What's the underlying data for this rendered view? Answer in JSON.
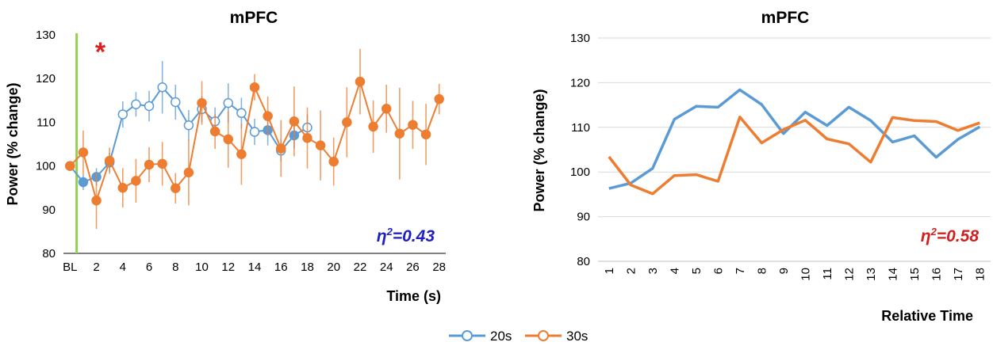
{
  "colors": {
    "s20": "#5B9BD5",
    "s30": "#ED7D31",
    "baseline": "#92D050",
    "eta_left": "#1F1FBF",
    "eta_right": "#D21F1F",
    "asterisk": "#E02020"
  },
  "legend": [
    {
      "label": "20s",
      "color": "#5B9BD5"
    },
    {
      "label": "30s",
      "color": "#ED7D31"
    }
  ],
  "chart_data": [
    {
      "type": "line",
      "title": "mPFC",
      "xlabel": "Time (s)",
      "ylabel": "Power (% change)",
      "ylim": [
        80,
        130
      ],
      "yticks": [
        80,
        90,
        100,
        110,
        120,
        130
      ],
      "xlim": [
        -0.5,
        28.5
      ],
      "xtick_values": [
        0,
        2,
        4,
        6,
        8,
        10,
        12,
        14,
        16,
        18,
        20,
        22,
        24,
        26,
        28
      ],
      "xtick_labels": [
        "BL",
        "2",
        "4",
        "6",
        "8",
        "10",
        "12",
        "14",
        "16",
        "18",
        "20",
        "22",
        "24",
        "26",
        "28"
      ],
      "baseline_marker_x": 0.5,
      "annotation": "*",
      "annotation_x": 2.3,
      "annotation_y": 124,
      "effect_size": {
        "base": "η",
        "sup": "2",
        "rest": "=0.43"
      },
      "error_bars": true,
      "series": [
        {
          "key": "s20",
          "x": [
            0,
            1,
            2,
            3,
            4,
            5,
            6,
            7,
            8,
            9,
            10,
            11,
            12,
            13,
            14,
            15,
            16,
            17,
            18
          ],
          "values": [
            100,
            96.3,
            97.5,
            100.8,
            111.8,
            114.1,
            113.7,
            118.0,
            114.6,
            109.3,
            113.0,
            110.2,
            114.4,
            112.1,
            107.8,
            108.2,
            103.5,
            107.0,
            108.8
          ],
          "errors": [
            0,
            1.8,
            2.0,
            2.2,
            3.0,
            2.8,
            3.5,
            6.0,
            4.0,
            3.5,
            3.0,
            3.2,
            4.5,
            3.5,
            3.0,
            3.5,
            2.5,
            3.0,
            3.0
          ],
          "filled": [
            true,
            true,
            true,
            true,
            false,
            false,
            false,
            false,
            false,
            false,
            false,
            false,
            false,
            false,
            false,
            true,
            false,
            true,
            false
          ]
        },
        {
          "key": "s30",
          "x": [
            0,
            1,
            2,
            3,
            4,
            5,
            6,
            7,
            8,
            9,
            10,
            11,
            12,
            13,
            14,
            15,
            16,
            17,
            18,
            19,
            20,
            21,
            22,
            23,
            24,
            25,
            26,
            27,
            28
          ],
          "values": [
            100,
            103.1,
            92.1,
            101.2,
            95.0,
            96.6,
            100.3,
            100.5,
            94.9,
            98.5,
            114.4,
            107.9,
            106.1,
            102.7,
            118.0,
            111.4,
            104.0,
            110.2,
            106.4,
            104.7,
            101.0,
            110.0,
            119.3,
            109.0,
            113.1,
            107.4,
            109.4,
            107.2,
            115.3
          ],
          "errors": [
            0,
            5.0,
            6.5,
            3.0,
            4.5,
            5.0,
            4.0,
            5.0,
            3.5,
            7.5,
            5.0,
            4.0,
            6.5,
            7.0,
            3.0,
            4.5,
            6.5,
            8.0,
            7.0,
            8.0,
            5.5,
            8.0,
            7.5,
            6.0,
            5.5,
            10.5,
            5.5,
            7.0,
            3.5
          ],
          "filled": true
        }
      ]
    },
    {
      "type": "line",
      "title": "mPFC",
      "xlabel": "Relative Time",
      "ylabel": "Power (% change)",
      "ylim": [
        80,
        130
      ],
      "yticks": [
        80,
        90,
        100,
        110,
        120,
        130
      ],
      "xlim": [
        0.5,
        18.5
      ],
      "xtick_values": [
        1,
        2,
        3,
        4,
        5,
        6,
        7,
        8,
        9,
        10,
        11,
        12,
        13,
        14,
        15,
        16,
        17,
        18
      ],
      "xtick_labels": [
        "1",
        "2",
        "3",
        "4",
        "5",
        "6",
        "7",
        "8",
        "9",
        "10",
        "11",
        "12",
        "13",
        "14",
        "15",
        "16",
        "17",
        "18"
      ],
      "xtick_rotate": true,
      "effect_size": {
        "base": "η",
        "sup": "2",
        "rest": "=0.58"
      },
      "series": [
        {
          "key": "s20",
          "x": [
            1,
            2,
            3,
            4,
            5,
            6,
            7,
            8,
            9,
            10,
            11,
            12,
            13,
            14,
            15,
            16,
            17,
            18
          ],
          "values": [
            96.3,
            97.5,
            100.8,
            111.8,
            114.7,
            114.5,
            118.4,
            115.1,
            108.6,
            113.4,
            110.4,
            114.5,
            111.5,
            106.7,
            108.1,
            103.3,
            107.3,
            110.1
          ]
        },
        {
          "key": "s30",
          "x": [
            1,
            2,
            3,
            4,
            5,
            6,
            7,
            8,
            9,
            10,
            11,
            12,
            13,
            14,
            15,
            16,
            17,
            18
          ],
          "values": [
            103.4,
            97.1,
            95.1,
            99.2,
            99.4,
            97.9,
            112.3,
            106.5,
            109.5,
            111.6,
            107.4,
            106.3,
            102.2,
            112.2,
            111.5,
            111.3,
            109.3,
            111.0
          ]
        }
      ]
    }
  ]
}
